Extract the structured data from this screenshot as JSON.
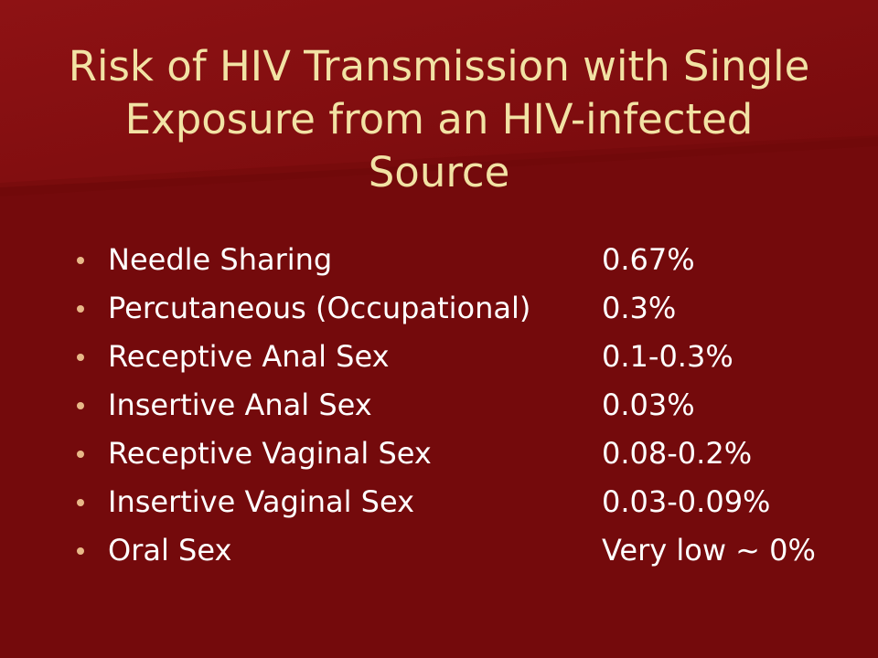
{
  "slide": {
    "title": "Risk of HIV Transmission with Single Exposure from an HIV-infected Source",
    "background_color": "#7a0a0c",
    "title_color": "#f2e2a4",
    "text_color": "#ffffff",
    "bullet_color": "#e8b888",
    "items": [
      {
        "label": "Needle Sharing",
        "value": "0.67%"
      },
      {
        "label": "Percutaneous (Occupational)",
        "value": "0.3%"
      },
      {
        "label": "Receptive Anal Sex",
        "value": "0.1-0.3%"
      },
      {
        "label": "Insertive Anal Sex",
        "value": "0.03%"
      },
      {
        "label": "Receptive Vaginal Sex",
        "value": "0.08-0.2%"
      },
      {
        "label": "Insertive Vaginal Sex",
        "value": "0.03-0.09%"
      },
      {
        "label": "Oral Sex",
        "value": "Very low ~ 0%"
      }
    ]
  }
}
